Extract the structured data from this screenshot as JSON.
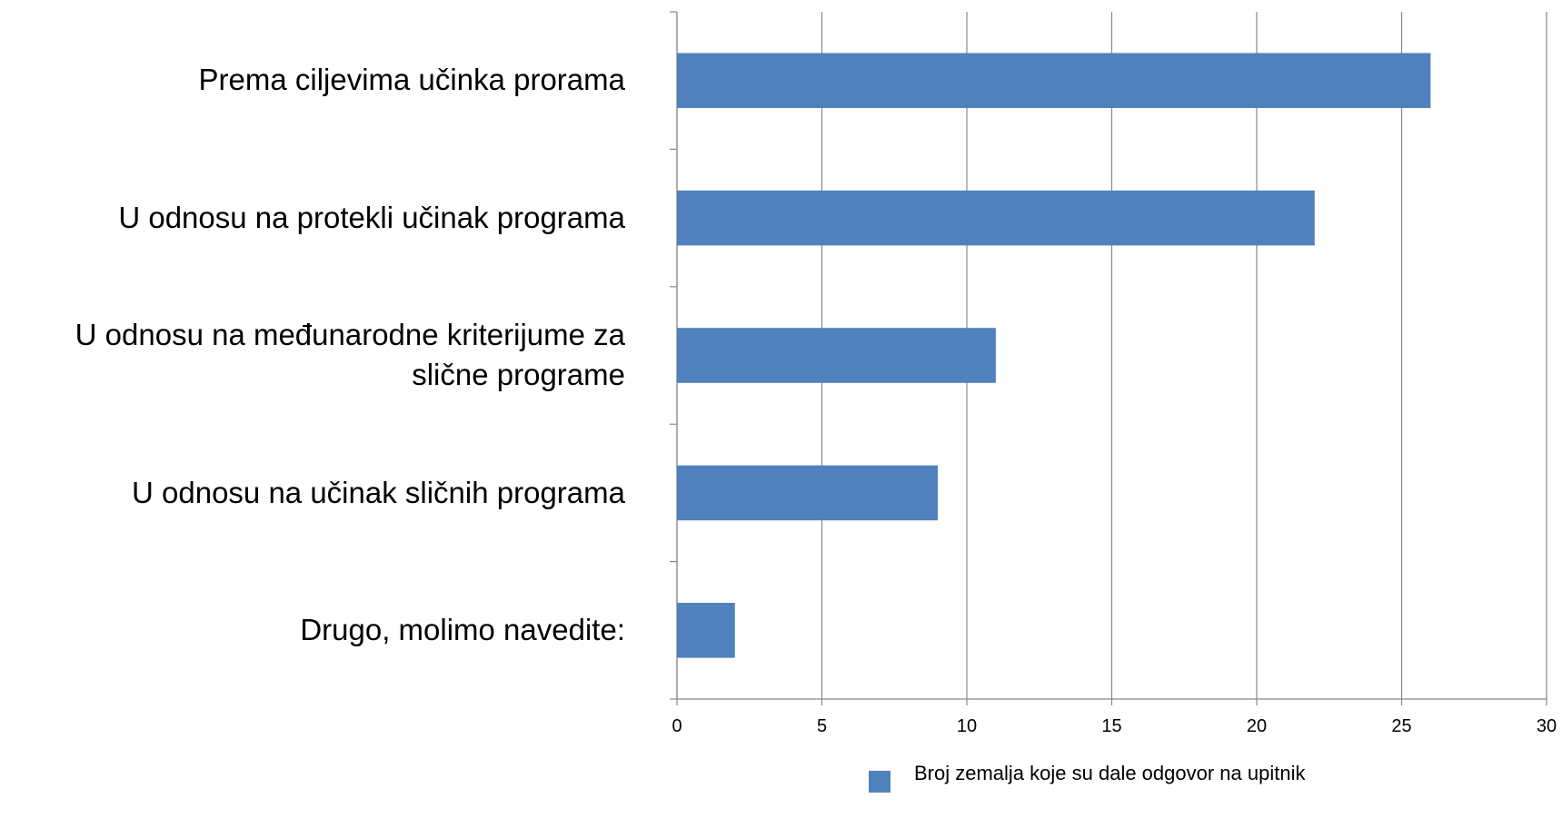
{
  "chart_data": {
    "type": "bar",
    "orientation": "horizontal",
    "categories": [
      "Prema ciljevima učinka prorama",
      "U odnosu na protekli učinak programa",
      "U odnosu na međunarodne kriterijume za slične programe",
      "U odnosu na učinak sličnih programa",
      "Drugo, molimo navedite:"
    ],
    "series": [
      {
        "name": "Broj zemalja koje su dale odgovor na upitnik",
        "color": "#4f81bd",
        "values": [
          26,
          22,
          11,
          9,
          2
        ]
      }
    ],
    "xlim": [
      0,
      30
    ],
    "xticks": [
      0,
      5,
      10,
      15,
      20,
      25,
      30
    ],
    "grid": true,
    "legend": "bottom"
  }
}
